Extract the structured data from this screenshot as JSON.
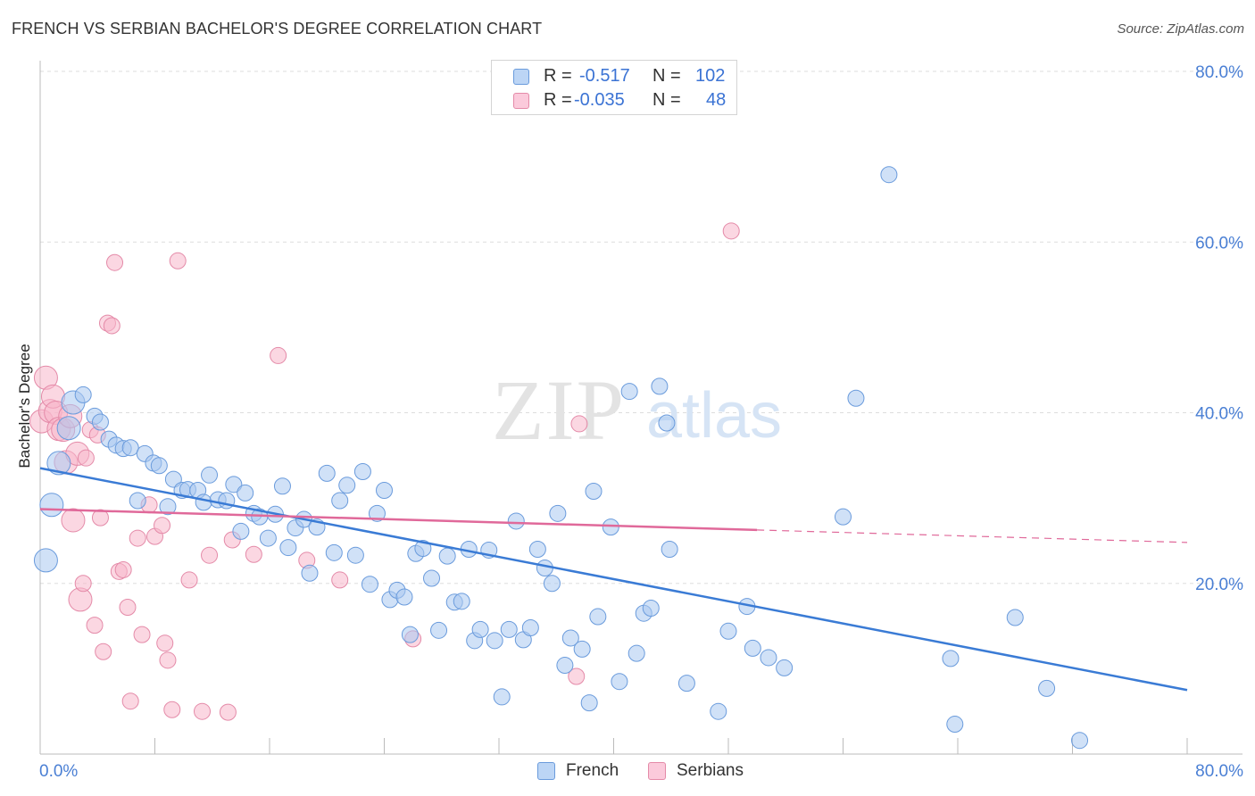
{
  "title": "FRENCH VS SERBIAN BACHELOR'S DEGREE CORRELATION CHART",
  "source": "Source: ZipAtlas.com",
  "watermark": {
    "zip": "ZIP",
    "atlas": "atlas"
  },
  "legend": {
    "rows": [
      {
        "r_label": "R =",
        "r_value": "-0.517",
        "n_label": "N =",
        "n_value": "102"
      },
      {
        "r_label": "R =",
        "r_value": "-0.035",
        "n_label": "N =",
        "n_value": "48"
      }
    ]
  },
  "colors": {
    "french_fill": "#a9c8f0",
    "french_stroke": "#6a9bdc",
    "french_line": "#3a7bd5",
    "serbian_fill": "#f7b6cb",
    "serbian_stroke": "#e48aa8",
    "serbian_line": "#e0699a",
    "grid": "#dddddd",
    "axis_text": "#4a7fd4"
  },
  "chart_data": {
    "type": "scatter",
    "title": "FRENCH VS SERBIAN BACHELOR'S DEGREE CORRELATION CHART",
    "xlabel": "",
    "ylabel": "Bachelor's Degree",
    "xlim": [
      0,
      80
    ],
    "ylim": [
      0,
      80
    ],
    "x_tick_labels": [
      "0.0%",
      "80.0%"
    ],
    "y_ticks": [
      20,
      40,
      60,
      80
    ],
    "y_tick_labels": [
      "20.0%",
      "40.0%",
      "60.0%",
      "80.0%"
    ],
    "grid": true,
    "legend_position": "top-center",
    "series": [
      {
        "name": "French",
        "r": -0.517,
        "n": 102,
        "trend": {
          "x0": 0,
          "y0": 33.5,
          "x1": 80,
          "y1": 7.5,
          "dashed_from": null
        },
        "points": [
          [
            0.4,
            22.7
          ],
          [
            0.8,
            29.2
          ],
          [
            1.3,
            34.1
          ],
          [
            2.3,
            41.2
          ],
          [
            3.0,
            42.1
          ],
          [
            2.0,
            38.2
          ],
          [
            3.8,
            39.6
          ],
          [
            4.2,
            38.9
          ],
          [
            4.8,
            36.9
          ],
          [
            5.3,
            36.2
          ],
          [
            5.8,
            35.8
          ],
          [
            6.3,
            35.9
          ],
          [
            7.3,
            35.2
          ],
          [
            7.9,
            34.1
          ],
          [
            8.3,
            33.8
          ],
          [
            6.8,
            29.7
          ],
          [
            8.9,
            29.0
          ],
          [
            9.3,
            32.2
          ],
          [
            9.9,
            30.9
          ],
          [
            10.3,
            31.0
          ],
          [
            11.0,
            30.9
          ],
          [
            11.4,
            29.5
          ],
          [
            11.8,
            32.7
          ],
          [
            12.4,
            29.8
          ],
          [
            13.0,
            29.7
          ],
          [
            13.5,
            31.6
          ],
          [
            14.0,
            26.1
          ],
          [
            14.3,
            30.6
          ],
          [
            14.9,
            28.2
          ],
          [
            15.3,
            27.8
          ],
          [
            15.9,
            25.3
          ],
          [
            16.4,
            28.1
          ],
          [
            16.9,
            31.4
          ],
          [
            17.3,
            24.2
          ],
          [
            17.8,
            26.5
          ],
          [
            18.4,
            27.5
          ],
          [
            18.8,
            21.2
          ],
          [
            19.3,
            26.6
          ],
          [
            20.0,
            32.9
          ],
          [
            20.5,
            23.6
          ],
          [
            20.9,
            29.7
          ],
          [
            21.4,
            31.5
          ],
          [
            22.0,
            23.3
          ],
          [
            22.5,
            33.1
          ],
          [
            23.0,
            19.9
          ],
          [
            23.5,
            28.2
          ],
          [
            24.0,
            30.9
          ],
          [
            24.4,
            18.1
          ],
          [
            24.9,
            19.2
          ],
          [
            25.4,
            18.4
          ],
          [
            25.8,
            14.0
          ],
          [
            26.2,
            23.5
          ],
          [
            26.7,
            24.1
          ],
          [
            27.3,
            20.6
          ],
          [
            27.8,
            14.5
          ],
          [
            28.4,
            23.2
          ],
          [
            28.9,
            17.8
          ],
          [
            29.4,
            17.9
          ],
          [
            29.9,
            24.0
          ],
          [
            30.3,
            13.3
          ],
          [
            30.7,
            14.6
          ],
          [
            31.3,
            23.9
          ],
          [
            31.7,
            13.3
          ],
          [
            32.2,
            6.7
          ],
          [
            32.7,
            14.6
          ],
          [
            33.2,
            27.3
          ],
          [
            33.7,
            13.4
          ],
          [
            34.2,
            14.8
          ],
          [
            34.7,
            24.0
          ],
          [
            35.2,
            21.8
          ],
          [
            35.7,
            20.0
          ],
          [
            36.1,
            28.2
          ],
          [
            36.6,
            10.4
          ],
          [
            37.0,
            13.6
          ],
          [
            37.8,
            12.3
          ],
          [
            38.3,
            6.0
          ],
          [
            38.6,
            30.8
          ],
          [
            38.9,
            16.1
          ],
          [
            39.8,
            26.6
          ],
          [
            40.4,
            8.5
          ],
          [
            41.1,
            42.5
          ],
          [
            41.6,
            11.8
          ],
          [
            42.1,
            16.5
          ],
          [
            42.6,
            17.1
          ],
          [
            43.2,
            43.1
          ],
          [
            43.7,
            38.8
          ],
          [
            43.9,
            24.0
          ],
          [
            45.1,
            8.3
          ],
          [
            47.3,
            5.0
          ],
          [
            48.0,
            14.4
          ],
          [
            49.3,
            17.3
          ],
          [
            49.7,
            12.4
          ],
          [
            50.8,
            11.3
          ],
          [
            51.9,
            10.1
          ],
          [
            56.0,
            27.8
          ],
          [
            56.9,
            41.7
          ],
          [
            59.2,
            67.9
          ],
          [
            63.5,
            11.2
          ],
          [
            63.8,
            3.5
          ],
          [
            68.0,
            16.0
          ],
          [
            70.2,
            7.7
          ],
          [
            72.5,
            1.6
          ]
        ]
      },
      {
        "name": "Serbians",
        "r": -0.035,
        "n": 48,
        "trend": {
          "x0": 0,
          "y0": 28.7,
          "x1": 80,
          "y1": 24.8,
          "dashed_from": 50
        },
        "points": [
          [
            0.1,
            39.0
          ],
          [
            0.4,
            44.1
          ],
          [
            0.7,
            40.2
          ],
          [
            0.9,
            41.9
          ],
          [
            1.1,
            40.0
          ],
          [
            1.3,
            38.1
          ],
          [
            1.6,
            38.0
          ],
          [
            1.8,
            34.2
          ],
          [
            2.1,
            39.6
          ],
          [
            2.3,
            27.4
          ],
          [
            2.6,
            35.2
          ],
          [
            2.8,
            18.1
          ],
          [
            3.0,
            20.0
          ],
          [
            3.2,
            34.7
          ],
          [
            3.5,
            38.0
          ],
          [
            3.8,
            15.1
          ],
          [
            4.0,
            37.4
          ],
          [
            4.2,
            27.7
          ],
          [
            4.4,
            12.0
          ],
          [
            4.7,
            50.5
          ],
          [
            5.0,
            50.2
          ],
          [
            5.2,
            57.6
          ],
          [
            5.5,
            21.4
          ],
          [
            5.8,
            21.6
          ],
          [
            6.1,
            17.2
          ],
          [
            6.3,
            6.2
          ],
          [
            6.8,
            25.3
          ],
          [
            7.1,
            14.0
          ],
          [
            7.6,
            29.2
          ],
          [
            8.0,
            25.5
          ],
          [
            8.5,
            26.8
          ],
          [
            8.7,
            13.0
          ],
          [
            8.9,
            11.0
          ],
          [
            9.2,
            5.2
          ],
          [
            9.6,
            57.8
          ],
          [
            10.4,
            20.4
          ],
          [
            11.3,
            5.0
          ],
          [
            11.8,
            23.3
          ],
          [
            13.1,
            4.9
          ],
          [
            13.4,
            25.1
          ],
          [
            14.9,
            23.4
          ],
          [
            16.6,
            46.7
          ],
          [
            18.6,
            22.7
          ],
          [
            20.9,
            20.4
          ],
          [
            26.0,
            13.5
          ],
          [
            37.4,
            9.1
          ],
          [
            37.6,
            38.7
          ],
          [
            48.2,
            61.3
          ]
        ]
      }
    ]
  },
  "bottom_legend": [
    {
      "label": "French"
    },
    {
      "label": "Serbians"
    }
  ]
}
